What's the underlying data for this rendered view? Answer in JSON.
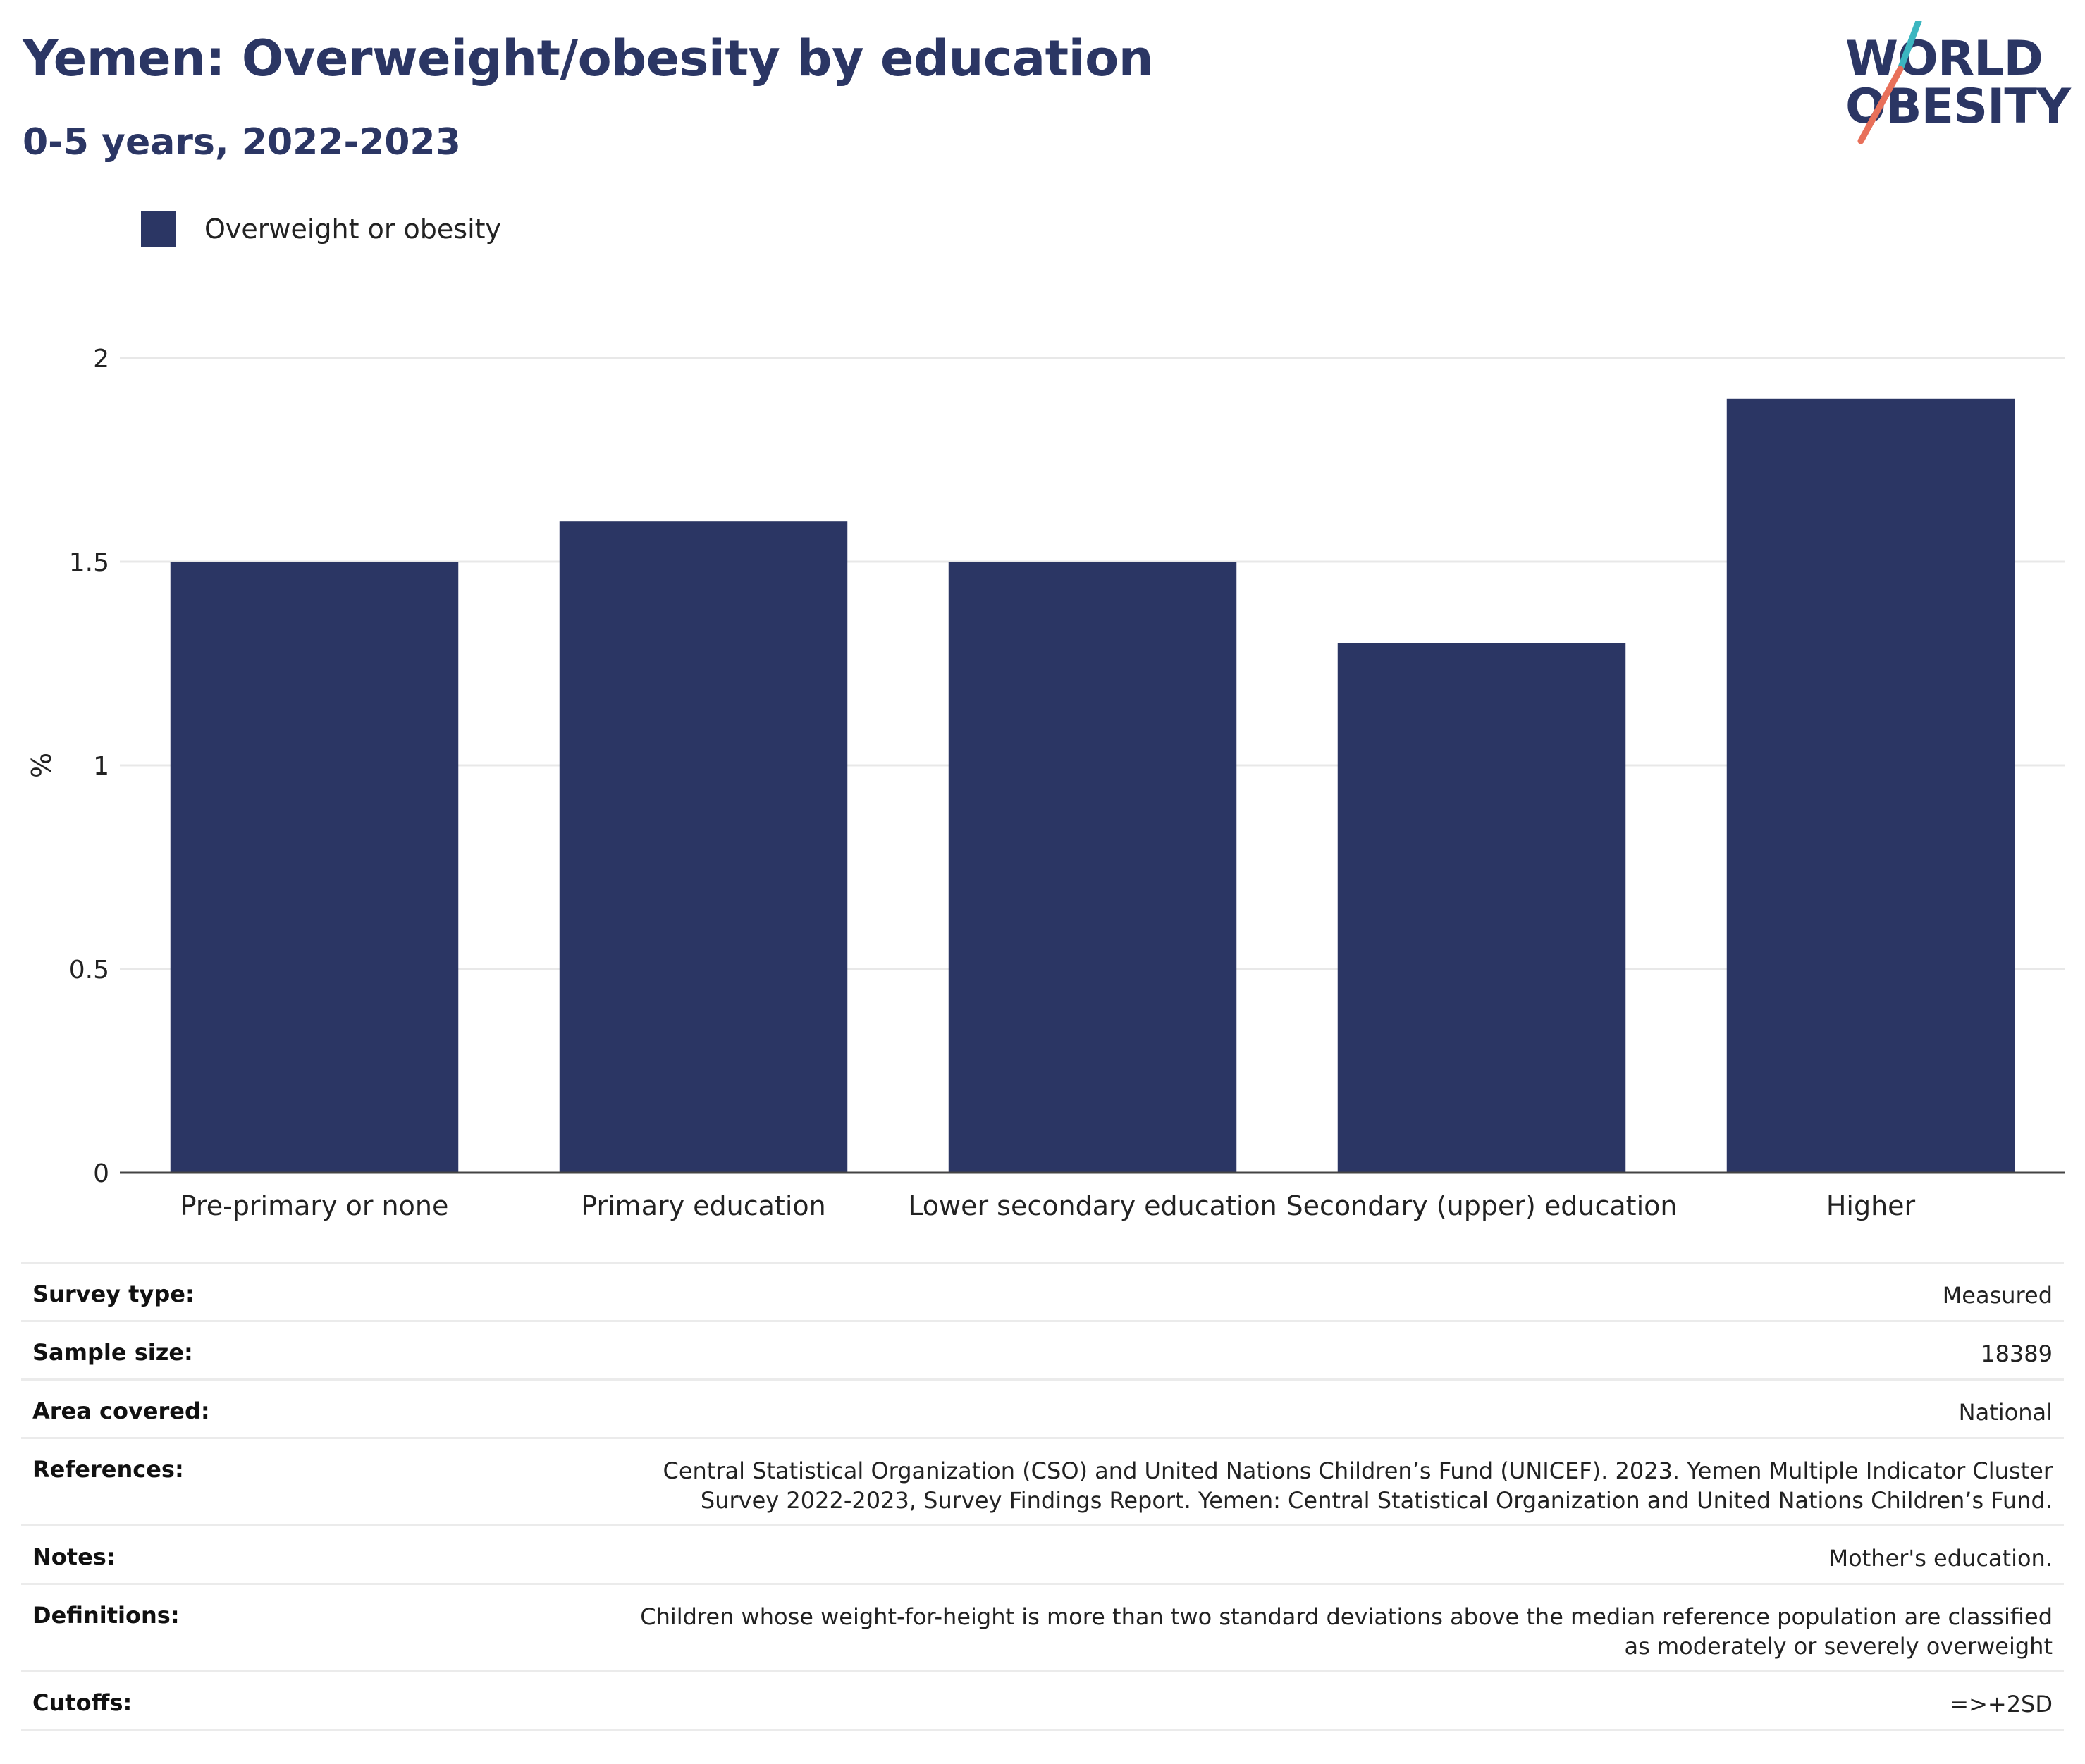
{
  "title": "Yemen: Overweight/obesity by education",
  "subtitle": "0-5 years, 2022-2023",
  "logo": {
    "line1": "WORLD",
    "line2": "OBESITY",
    "accent_teal": "#3bb6c0",
    "accent_coral": "#e8705a"
  },
  "colors": {
    "bar": "#2b3664",
    "title": "#2b3664",
    "grid": "#e8e8e8",
    "axis": "#444444"
  },
  "legend": {
    "label": "Overweight or obesity"
  },
  "chart_data": {
    "type": "bar",
    "categories": [
      "Pre-primary or none",
      "Primary education",
      "Lower secondary education",
      "Secondary (upper) education",
      "Higher"
    ],
    "series": [
      {
        "name": "Overweight or obesity",
        "values": [
          1.5,
          1.6,
          1.5,
          1.3,
          1.9
        ]
      }
    ],
    "ylabel": "%",
    "xlabel": "",
    "ylim": [
      0,
      2
    ],
    "yticks": [
      0,
      0.5,
      1,
      1.5,
      2
    ],
    "ytick_labels": [
      "0",
      "0.5",
      "1",
      "1.5",
      "2"
    ],
    "grid": true,
    "legend_position": "top-left"
  },
  "meta": [
    {
      "label": "Survey type:",
      "value": "Measured"
    },
    {
      "label": "Sample size:",
      "value": "18389"
    },
    {
      "label": "Area covered:",
      "value": "National"
    },
    {
      "label": "References:",
      "value": "Central Statistical Organization (CSO) and United Nations Children’s Fund (UNICEF). 2023. Yemen Multiple Indicator Cluster Survey 2022-2023, Survey Findings Report. Yemen: Central Statistical Organization and United Nations Children’s Fund."
    },
    {
      "label": "Notes:",
      "value": "Mother's education."
    },
    {
      "label": "Definitions:",
      "value": "Children whose weight-for-height is more than two standard deviations above the median reference population are classified as moderately or severely overweight"
    },
    {
      "label": "Cutoffs:",
      "value": "=>+2SD"
    }
  ]
}
